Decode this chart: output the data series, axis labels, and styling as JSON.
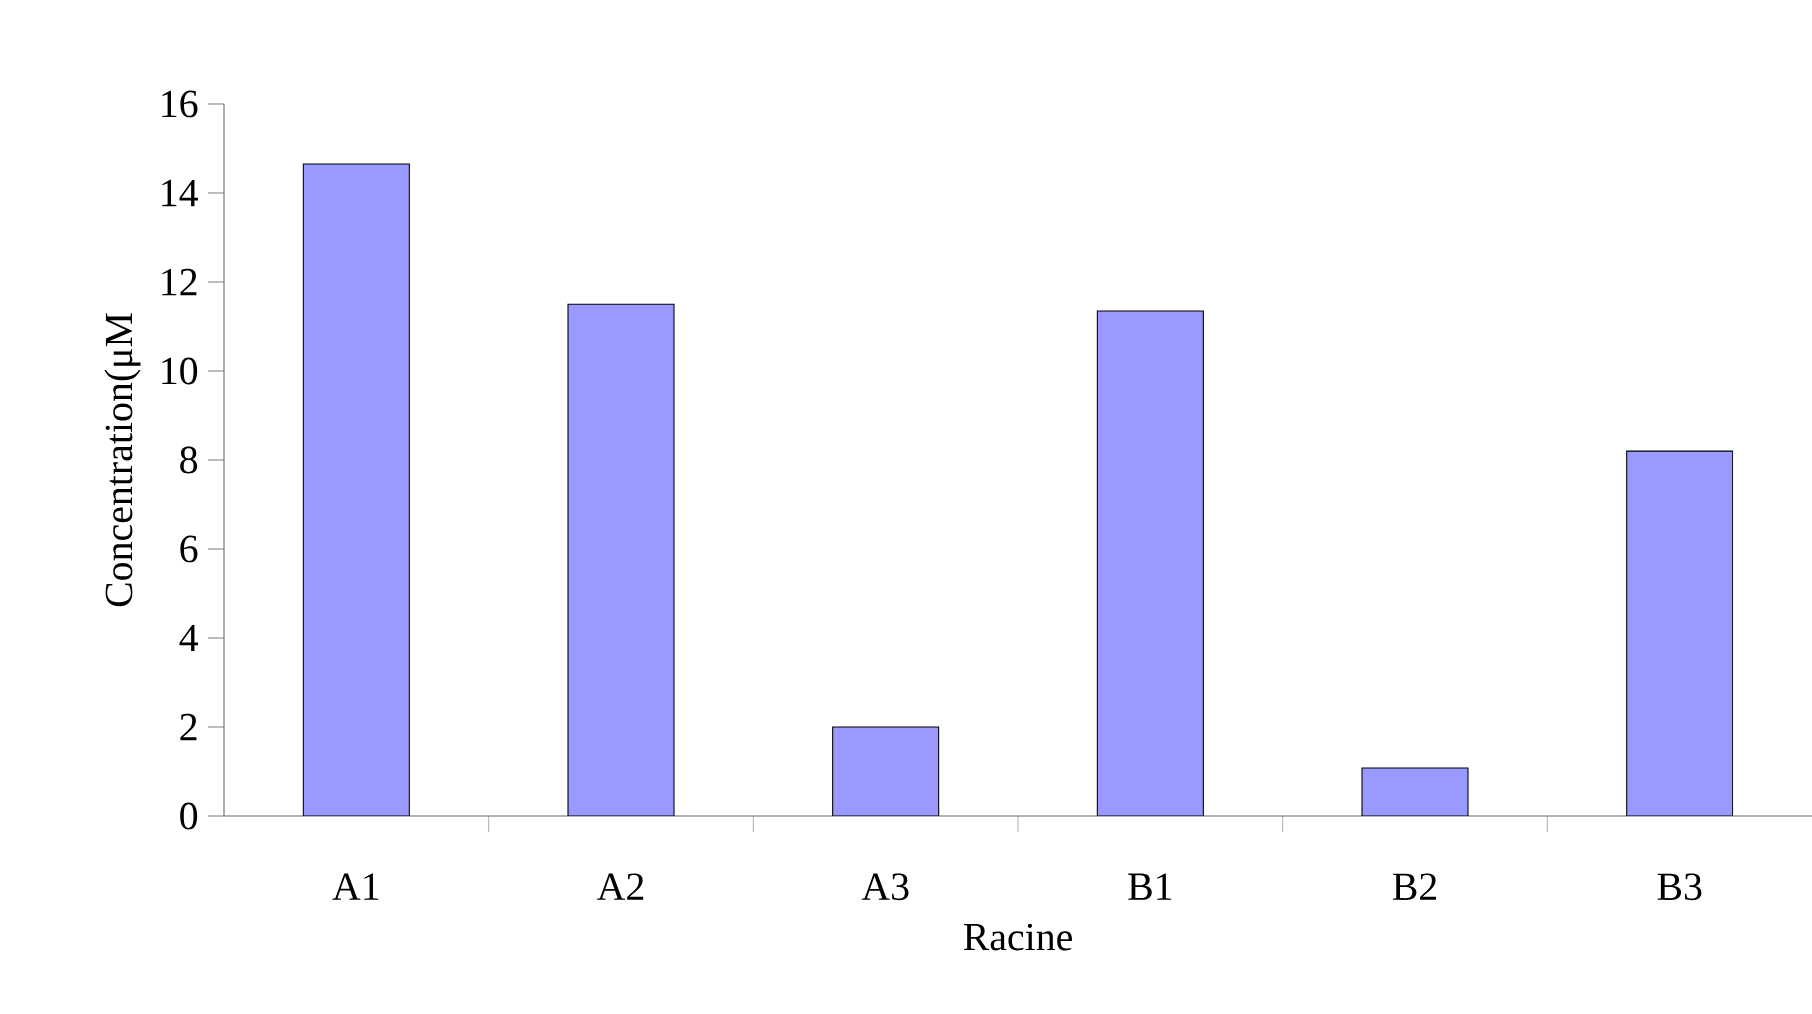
{
  "chart_data": {
    "type": "bar",
    "xlabel": "Racine",
    "ylabel": "Concentration(μM",
    "categories": [
      "A1",
      "A2",
      "A3",
      "B1",
      "B2",
      "B3"
    ],
    "values": [
      14.65,
      11.5,
      2.0,
      11.35,
      1.08,
      8.2
    ],
    "color": "#9999ff",
    "ylim": [
      0,
      16
    ],
    "yticks": [
      0,
      2,
      4,
      6,
      8,
      10,
      12,
      14,
      16
    ],
    "grid": false
  }
}
